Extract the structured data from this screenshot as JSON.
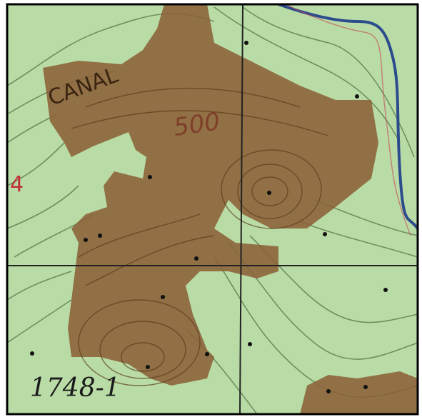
{
  "map": {
    "labels": {
      "canal": "CANAL",
      "elevation": "500",
      "benchmark": "1748-1",
      "section": "4"
    }
  }
}
